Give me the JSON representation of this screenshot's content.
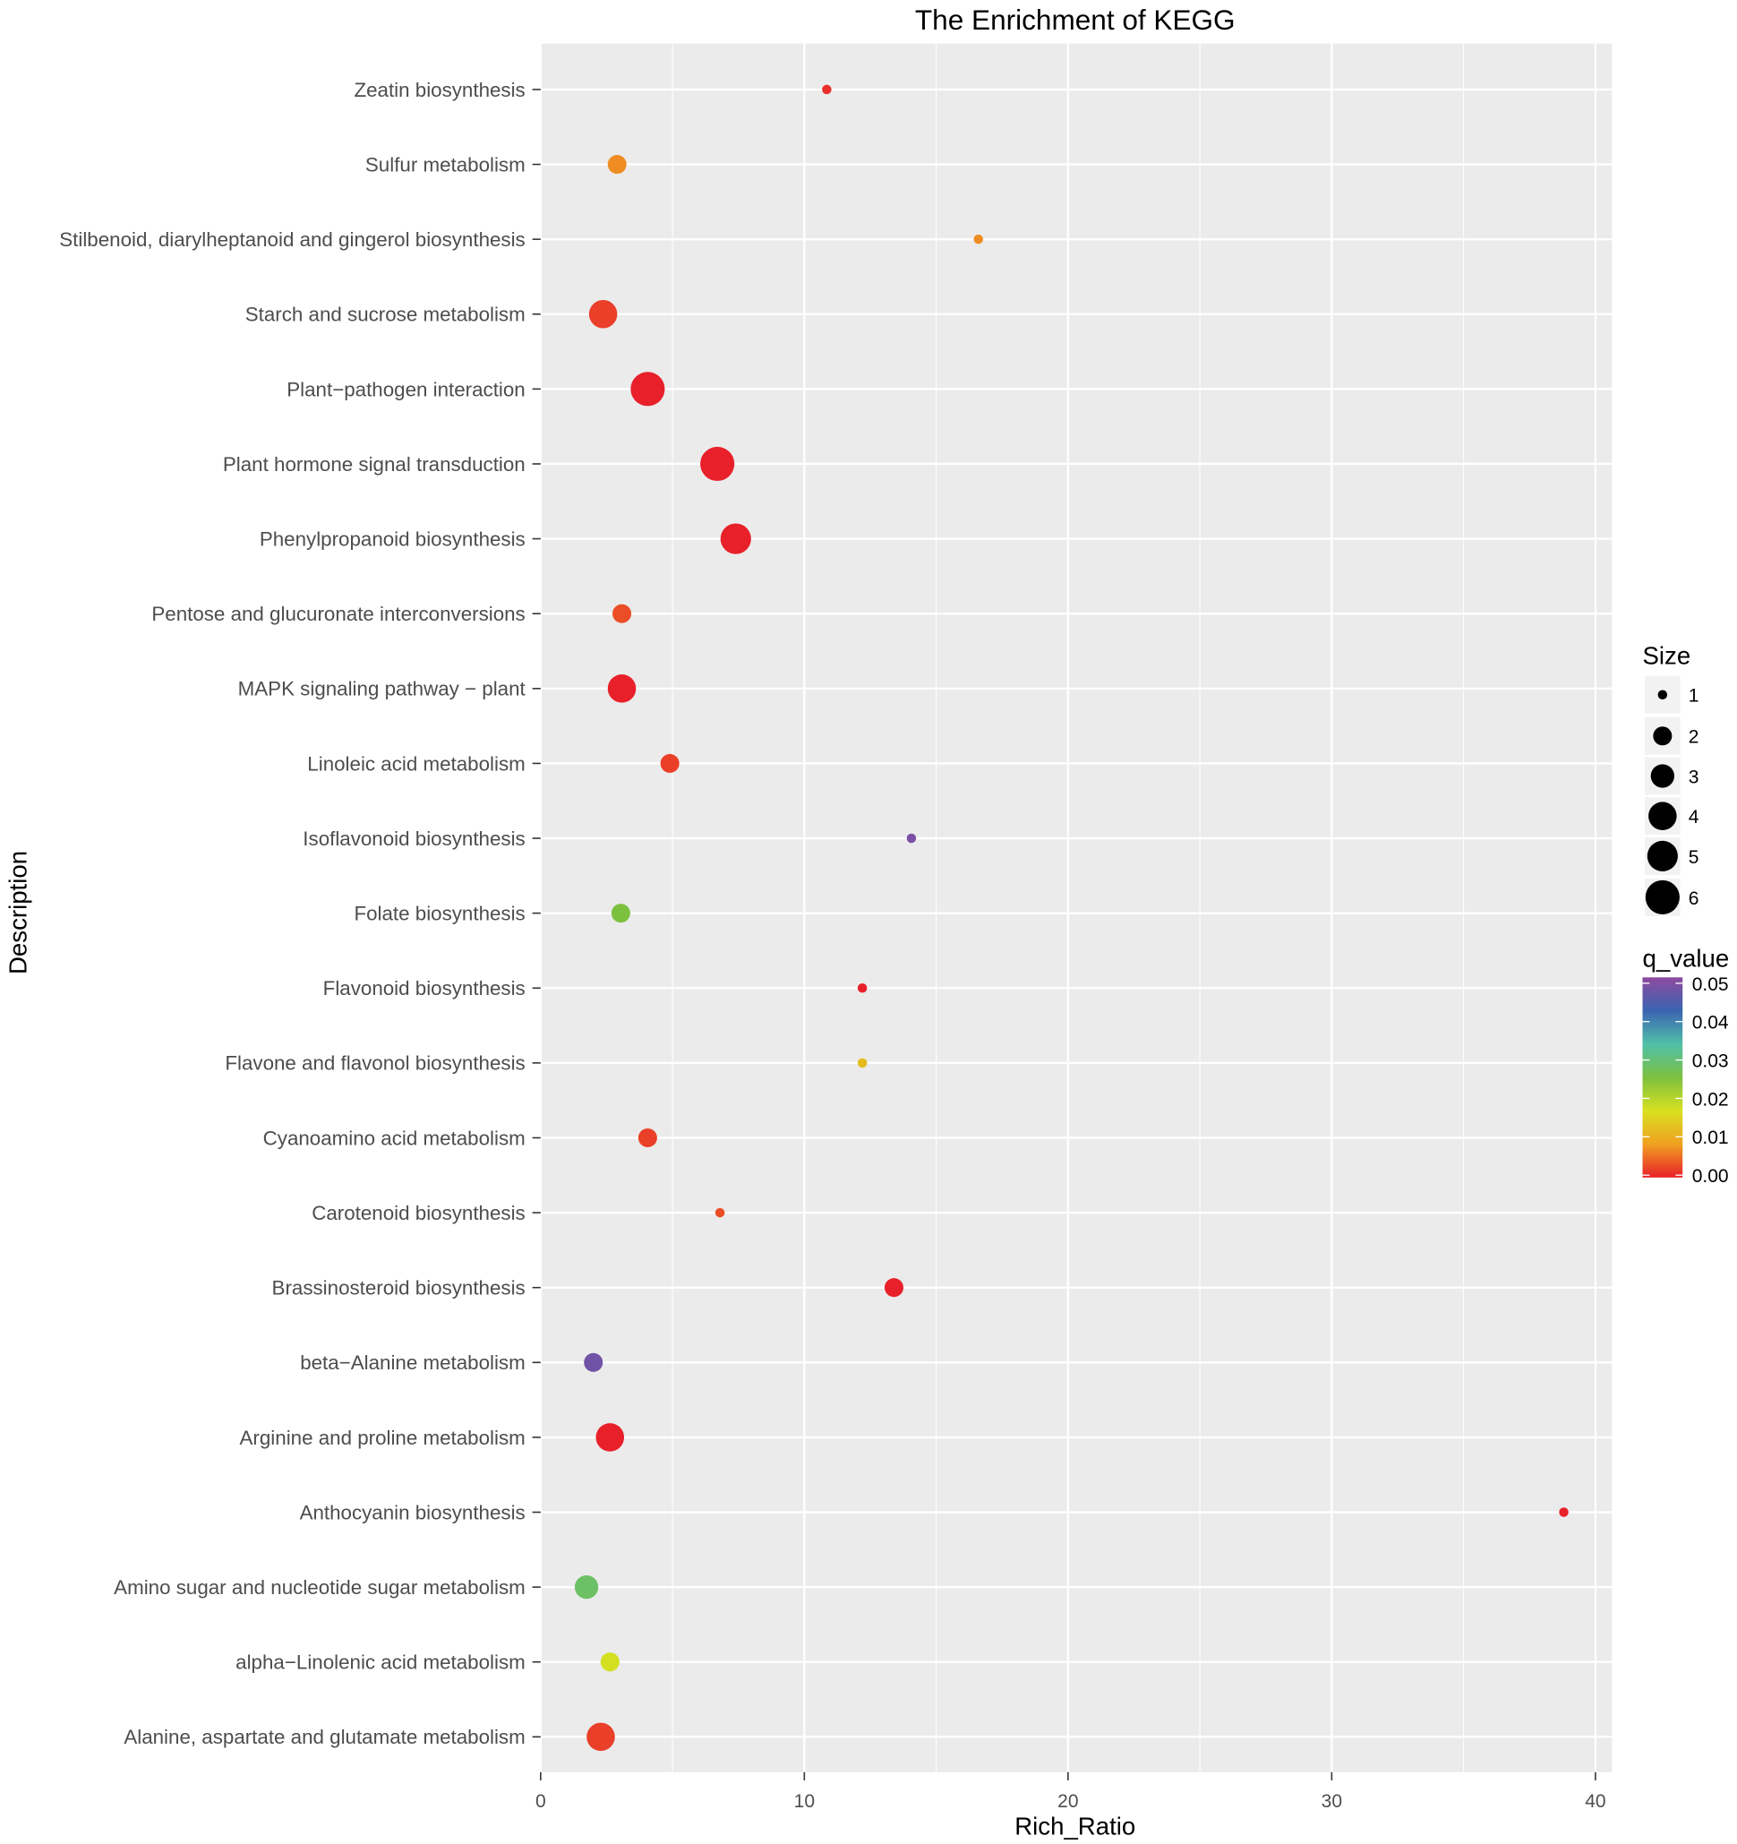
{
  "chart_data": {
    "type": "scatter",
    "title": "The Enrichment of KEGG",
    "xlabel": "Rich_Ratio",
    "ylabel": "Description",
    "xlim": [
      0,
      40.7
    ],
    "xticks": [
      0,
      10,
      20,
      30,
      40
    ],
    "grid": true,
    "legend_placement": "right",
    "size_legend": {
      "title": "Size",
      "values": [
        1,
        2,
        3,
        4,
        5,
        6
      ]
    },
    "color_legend": {
      "title": "q_value",
      "ticks": [
        "0.05",
        "0.04",
        "0.03",
        "0.02",
        "0.01",
        "0.00"
      ],
      "range": [
        0,
        0.05
      ],
      "colors": [
        "#e8202a",
        "#f0a020",
        "#d8e020",
        "#7cc040",
        "#50c0a8",
        "#3a64b0",
        "#8e4aa0"
      ]
    },
    "points": [
      {
        "category": "Zeatin biosynthesis",
        "x": 10.85,
        "size": 1,
        "q_value": 0.001
      },
      {
        "category": "Sulfur metabolism",
        "x": 2.9,
        "size": 2,
        "q_value": 0.007
      },
      {
        "category": "Stilbenoid, diarylheptanoid and gingerol biosynthesis",
        "x": 16.6,
        "size": 1,
        "q_value": 0.007
      },
      {
        "category": "Starch and sucrose metabolism",
        "x": 2.37,
        "size": 4,
        "q_value": 0.002
      },
      {
        "category": "Plant−pathogen interaction",
        "x": 4.06,
        "size": 6,
        "q_value": 0.0
      },
      {
        "category": "Plant hormone signal transduction",
        "x": 6.7,
        "size": 6,
        "q_value": 0.0
      },
      {
        "category": "Phenylpropanoid biosynthesis",
        "x": 7.4,
        "size": 5,
        "q_value": 0.0
      },
      {
        "category": "Pentose and glucuronate interconversions",
        "x": 3.08,
        "size": 2,
        "q_value": 0.003
      },
      {
        "category": "MAPK signaling pathway − plant",
        "x": 3.08,
        "size": 4,
        "q_value": 0.0
      },
      {
        "category": "Linoleic acid metabolism",
        "x": 4.9,
        "size": 2,
        "q_value": 0.002
      },
      {
        "category": "Isoflavonoid biosynthesis",
        "x": 14.06,
        "size": 1,
        "q_value": 0.048
      },
      {
        "category": "Folate biosynthesis",
        "x": 3.04,
        "size": 2,
        "q_value": 0.025
      },
      {
        "category": "Flavonoid biosynthesis",
        "x": 12.2,
        "size": 1,
        "q_value": 0.0
      },
      {
        "category": "Flavone and flavonol biosynthesis",
        "x": 12.2,
        "size": 1,
        "q_value": 0.012
      },
      {
        "category": "Cyanoamino acid metabolism",
        "x": 4.06,
        "size": 2,
        "q_value": 0.002
      },
      {
        "category": "Carotenoid biosynthesis",
        "x": 6.8,
        "size": 1,
        "q_value": 0.003
      },
      {
        "category": "Brassinosteroid biosynthesis",
        "x": 13.4,
        "size": 2,
        "q_value": 0.0
      },
      {
        "category": "beta−Alanine metabolism",
        "x": 2.0,
        "size": 2,
        "q_value": 0.047
      },
      {
        "category": "Arginine and proline metabolism",
        "x": 2.63,
        "size": 4,
        "q_value": 0.0
      },
      {
        "category": "Anthocyanin biosynthesis",
        "x": 38.8,
        "size": 1,
        "q_value": 0.0
      },
      {
        "category": "Amino sugar and nucleotide sugar metabolism",
        "x": 1.74,
        "size": 3,
        "q_value": 0.028
      },
      {
        "category": "alpha−Linolenic acid metabolism",
        "x": 2.63,
        "size": 2,
        "q_value": 0.017
      },
      {
        "category": "Alanine, aspartate and glutamate metabolism",
        "x": 2.28,
        "size": 4,
        "q_value": 0.002
      }
    ]
  }
}
